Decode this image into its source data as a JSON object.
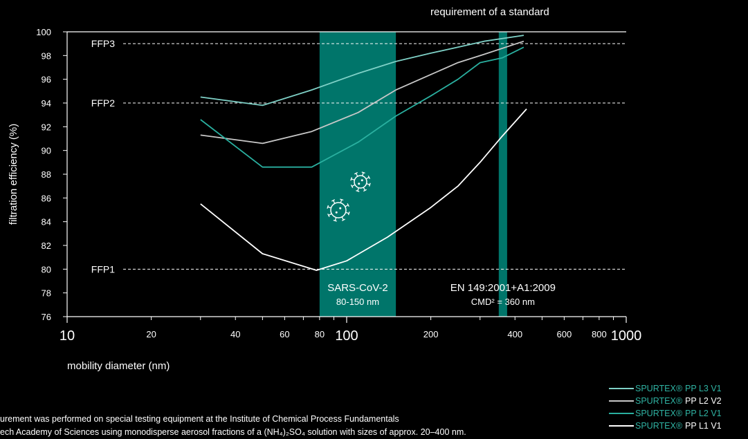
{
  "chart_data": {
    "type": "line",
    "x_scale": "log",
    "xlim": [
      10,
      1000
    ],
    "ylim": [
      76,
      100
    ],
    "xlabel": "mobility diameter (nm)",
    "ylabel": "filtration efficiency (%)",
    "top_annotation": "requirement of a standard",
    "x_major_ticks": [
      10,
      100,
      1000
    ],
    "x_major_tick_labels": [
      "10",
      "100",
      "1000"
    ],
    "x_minor_ticks": [
      20,
      40,
      60,
      80,
      200,
      400,
      600,
      800
    ],
    "x_minor_tick_labels": [
      "20",
      "40",
      "60",
      "80",
      "200",
      "400",
      "600",
      "800"
    ],
    "y_ticks": [
      76,
      78,
      80,
      82,
      84,
      86,
      88,
      90,
      92,
      94,
      96,
      98,
      100
    ],
    "y_tick_labels": [
      "76",
      "78",
      "80",
      "82",
      "84",
      "86",
      "88",
      "90",
      "92",
      "94",
      "96",
      "98",
      "100"
    ],
    "reference_lines": [
      {
        "label": "FFP3",
        "y": 99
      },
      {
        "label": "FFP2",
        "y": 94
      },
      {
        "label": "FFP1",
        "y": 80
      }
    ],
    "bands": [
      {
        "x_from": 80,
        "x_to": 150,
        "title": "SARS-CoV-2",
        "subtitle": "80-150 nm"
      },
      {
        "x_from": 350,
        "x_to": 375,
        "title": "EN 149:2001+A1:2009",
        "subtitle": "CMD² = 360 nm"
      }
    ],
    "series": [
      {
        "name_brand": "SPURTEX®",
        "name_rest": "PP L3 V1",
        "color": "#7fd1c7",
        "x": [
          30,
          50,
          75,
          110,
          150,
          200,
          250,
          310,
          430
        ],
        "y": [
          94.5,
          93.8,
          95.1,
          96.5,
          97.5,
          98.2,
          98.7,
          99.2,
          99.7
        ]
      },
      {
        "name_brand": "SPURTEX®",
        "name_rest": "PP L2 V2",
        "color": "#c8c8c8",
        "x": [
          30,
          50,
          75,
          110,
          150,
          200,
          250,
          310,
          430
        ],
        "y": [
          91.3,
          90.6,
          91.6,
          93.2,
          95.1,
          96.4,
          97.4,
          98.1,
          99.2
        ]
      },
      {
        "name_brand": "SPURTEX®",
        "name_rest": "PP L2 V1",
        "color": "#2ab0a0",
        "x": [
          30,
          50,
          75,
          110,
          150,
          200,
          250,
          300,
          360,
          430
        ],
        "y": [
          92.6,
          88.6,
          88.6,
          90.7,
          92.9,
          94.6,
          96.0,
          97.4,
          97.8,
          98.7
        ]
      },
      {
        "name_brand": "SPURTEX®",
        "name_rest": "PP L1 V1",
        "color": "#ffffff",
        "x": [
          30,
          50,
          78,
          100,
          140,
          200,
          250,
          300,
          360,
          440
        ],
        "y": [
          85.5,
          81.3,
          79.9,
          80.7,
          82.7,
          85.2,
          87.0,
          89.0,
          91.2,
          93.5
        ]
      }
    ]
  },
  "colors": {
    "band": "#00756a",
    "accent": "#2fb3a3"
  },
  "footnote": {
    "line1": "urement was performed on special testing equipment at the Institute of Chemical Process Fundamentals",
    "line2": "ech Academy of Sciences using monodisperse aerosol fractions of a (NH₄)₂SO₄ solution with sizes of approx. 20–400 nm."
  }
}
